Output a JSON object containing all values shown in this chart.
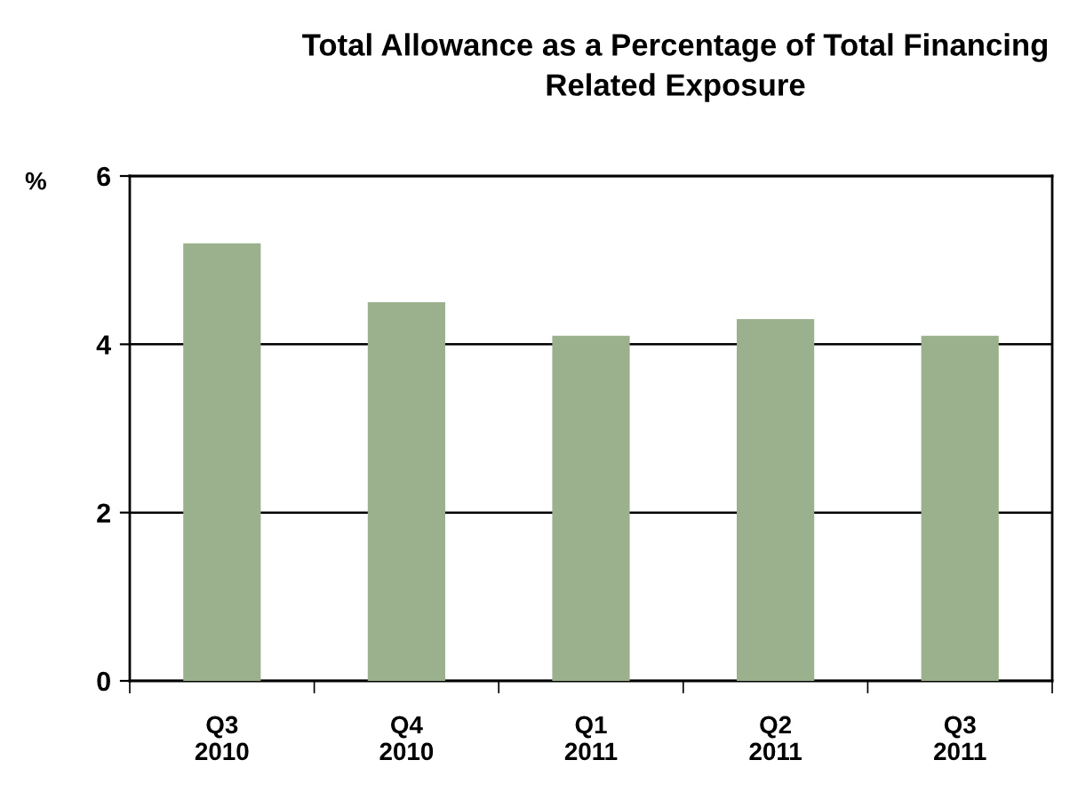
{
  "chart_data": {
    "type": "bar",
    "title": "Total Allowance as a Percentage of Total Financing\nRelated Exposure",
    "ylabel": "%",
    "categories": [
      "Q3\n2010",
      "Q4\n2010",
      "Q1\n2011",
      "Q2\n2011",
      "Q3\n2011"
    ],
    "values": [
      5.2,
      4.5,
      4.1,
      4.3,
      4.1
    ],
    "color": "#9bb08d",
    "ylim": [
      0,
      6
    ],
    "yticks": [
      0,
      2,
      4,
      6
    ],
    "grid": "y",
    "legend": false
  }
}
